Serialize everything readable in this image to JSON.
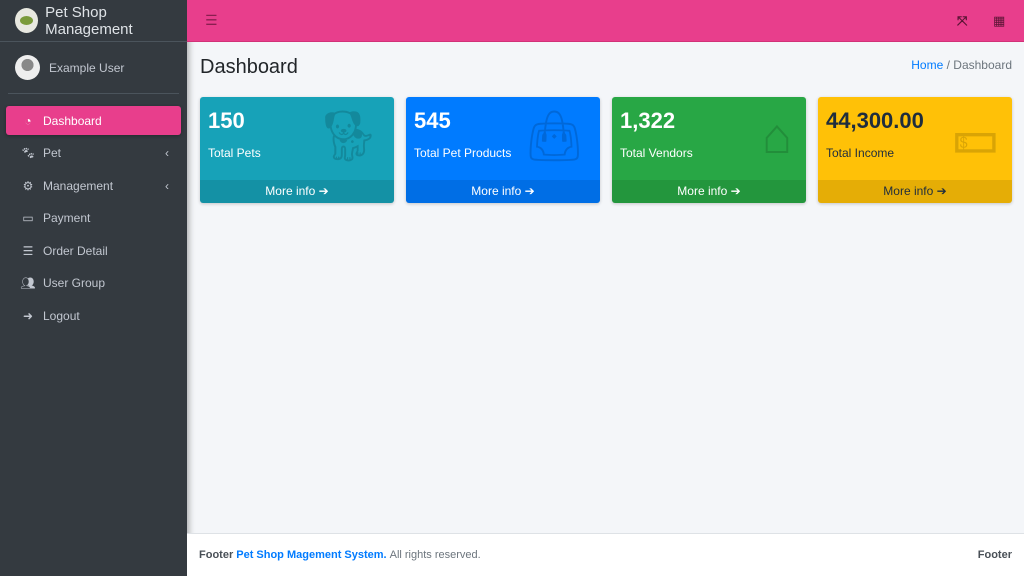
{
  "brand": {
    "title": "Pet Shop Management"
  },
  "user": {
    "name": "Example User"
  },
  "sidebar": {
    "items": [
      {
        "label": "Dashboard",
        "icon": "tachometer-icon",
        "active": true
      },
      {
        "label": "Pet",
        "icon": "paw-icon",
        "chevron": true
      },
      {
        "label": "Management",
        "icon": "users-cog-icon",
        "chevron": true
      },
      {
        "label": "Payment",
        "icon": "money-bill-icon"
      },
      {
        "label": "Order Detail",
        "icon": "list-alt-icon"
      },
      {
        "label": "User Group",
        "icon": "users-icon"
      },
      {
        "label": "Logout",
        "icon": "sign-out-icon"
      }
    ]
  },
  "topbar": {
    "icons": [
      "menu-icon",
      "fullscreen-exit-icon",
      "grid-icon"
    ]
  },
  "page": {
    "title": "Dashboard",
    "breadcrumb": {
      "home": "Home",
      "sep": "/",
      "current": "Dashboard"
    }
  },
  "cards": [
    {
      "value": "150",
      "label": "Total Pets",
      "more": "More info",
      "color": "#17a2b8",
      "icon": "dog-icon"
    },
    {
      "value": "545",
      "label": "Total Pet Products",
      "more": "More info",
      "color": "#007bff",
      "icon": "shopping-bag-icon"
    },
    {
      "value": "1,322",
      "label": "Total Vendors",
      "more": "More info",
      "color": "#28a745",
      "icon": "house-user-icon"
    },
    {
      "value": "44,300.00",
      "label": "Total Income",
      "more": "More info",
      "color": "#ffc107",
      "icon": "money-bill-icon"
    }
  ],
  "footer": {
    "prefix": "Footer",
    "link": "Pet Shop Magement System.",
    "suffix": "All rights reserved.",
    "right": "Footer"
  }
}
